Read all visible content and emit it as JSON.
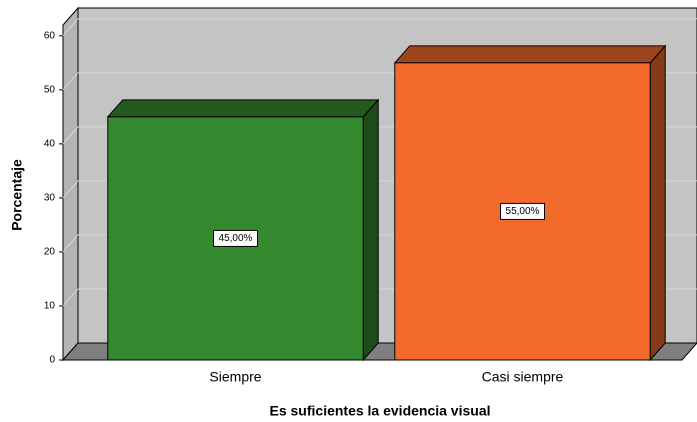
{
  "chart_data": {
    "type": "bar3d",
    "xlabel": "Es suficientes la evidencia visual",
    "ylabel": "Porcentaje",
    "categories": [
      "Siempre",
      "Casi siempre"
    ],
    "values": [
      45,
      55
    ],
    "value_labels": [
      "45,00%",
      "55,00%"
    ],
    "colors": [
      "#358a2f",
      "#f26a2c"
    ],
    "ylim": [
      0,
      62
    ],
    "yticks": [
      0,
      10,
      20,
      30,
      40,
      50,
      60
    ],
    "grid": true
  }
}
